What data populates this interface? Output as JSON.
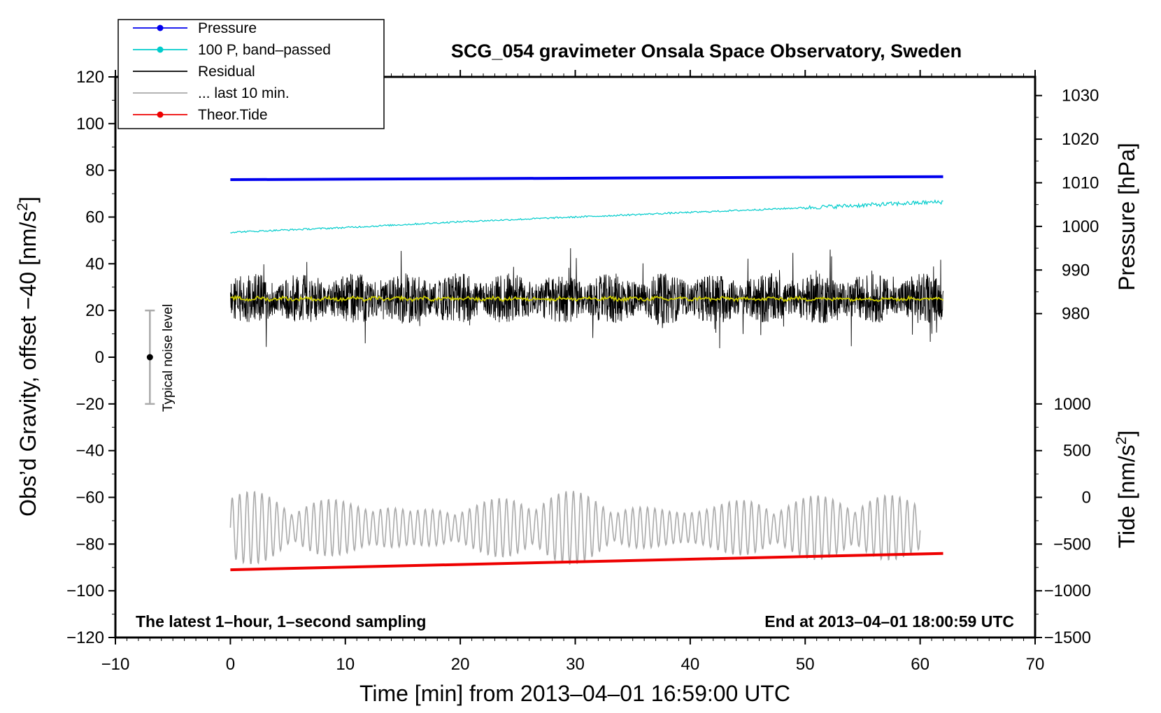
{
  "chart_data": {
    "type": "line",
    "title": "SCG_054 gravimeter Onsala Space Observatory, Sweden",
    "xlabel": "Time [min] from 2013–04–01 16:59:00 UTC",
    "ylabel_left": "Obs’d Gravity, offset −40 [nm/s",
    "ylabel_left_sup": "2",
    "ylabel_left_end": "]",
    "ylabel_right_pressure": "Pressure [hPa]",
    "ylabel_right_tide": "Tide [nm/s",
    "ylabel_right_tide_sup": "2",
    "ylabel_right_tide_end": "]",
    "xlim": [
      -10,
      70
    ],
    "ylim_left": [
      -120,
      120
    ],
    "xticks": [
      -10,
      0,
      10,
      20,
      30,
      40,
      50,
      60,
      70
    ],
    "xtick_labels": [
      "−10",
      "0",
      "10",
      "20",
      "30",
      "40",
      "50",
      "60",
      "70"
    ],
    "yticks_left": [
      120,
      100,
      80,
      60,
      40,
      20,
      0,
      -20,
      -40,
      -60,
      -80,
      -100,
      -120
    ],
    "ytick_labels_left": [
      "120",
      "100",
      "80",
      "60",
      "40",
      "20",
      "0",
      "−20",
      "−40",
      "−60",
      "−80",
      "−100",
      "−120"
    ],
    "pressure_axis": {
      "ticks": [
        980,
        990,
        1000,
        1010,
        1020,
        1030
      ],
      "gravity_at_1000": 56,
      "gravity_per_hpa": 1.867
    },
    "tide_axis": {
      "ticks": [
        1000,
        500,
        0,
        -500,
        -1000,
        -1500
      ],
      "tick_labels": [
        "1000",
        "500",
        "0",
        "−500",
        "−1000",
        "−1500"
      ],
      "gravity_at_0": -60,
      "gravity_per_unit": 0.04
    },
    "annotations": {
      "left": "The latest 1–hour, 1–second sampling",
      "right": "End at 2013–04–01 18:00:59 UTC",
      "noise": "Typical noise level"
    },
    "noise_bar": {
      "x": -7,
      "center": 0,
      "low": -20,
      "high": 20
    },
    "legend": [
      {
        "label": "Pressure",
        "color": "#0000ee",
        "marker": true
      },
      {
        "label": "100 P, band–passed",
        "color": "#00cccc",
        "marker": true
      },
      {
        "label": "Residual",
        "color": "#000000",
        "marker": false
      },
      {
        "label": "... last 10 min.",
        "color": "#aaaaaa",
        "marker": false
      },
      {
        "label": "Theor.Tide",
        "color": "#ee0000",
        "marker": true
      }
    ],
    "series": [
      {
        "name": "Pressure",
        "color": "#0000ee",
        "x": [
          0,
          62
        ],
        "y": [
          76,
          77.3
        ]
      },
      {
        "name": "100 P, band–passed",
        "color": "#00cccc",
        "x": [
          0,
          10,
          20,
          30,
          40,
          50,
          57,
          62
        ],
        "y": [
          53.5,
          55.5,
          58,
          60,
          62,
          64,
          65.5,
          66.5
        ]
      },
      {
        "name": "Residual",
        "color": "#000000",
        "x_range": [
          0,
          62
        ],
        "mean": 25,
        "typical_range": [
          10,
          42
        ]
      },
      {
        "name": "Residual smoothed",
        "color": "#cccc00",
        "x_range": [
          0,
          62
        ],
        "mean": 25
      },
      {
        "name": "... last 10 min.",
        "color": "#aaaaaa",
        "x_range": [
          0,
          60
        ],
        "mean": -73,
        "typical_range": [
          -90,
          -55
        ]
      },
      {
        "name": "Theor.Tide",
        "color": "#ee0000",
        "x": [
          0,
          62
        ],
        "y": [
          -91,
          -84
        ]
      }
    ]
  }
}
